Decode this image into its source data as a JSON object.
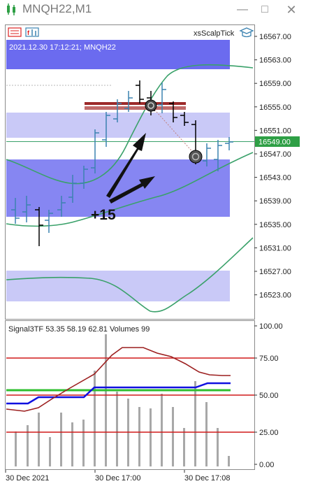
{
  "window": {
    "title": "MNQH22,M1",
    "icons": [
      "chart-app-icon",
      "minimize-icon",
      "maximize-icon",
      "close-icon"
    ]
  },
  "toolbar": {
    "indicator_name": "xsScalpTick",
    "icons": [
      "trade-panel-icon",
      "indicator-list-icon",
      "graduation-cap-icon"
    ]
  },
  "main_chart": {
    "info_label": "2021.12.30 17:12:21; MNQH22",
    "annotation": "+15",
    "price_axis": [
      "16567.00",
      "16563.00",
      "16559.00",
      "16555.00",
      "16551.00",
      "16547.00",
      "16543.00",
      "16539.00",
      "16535.00",
      "16531.00",
      "16527.00",
      "16523.00"
    ],
    "current_price": "16549.00",
    "current_price_color": "#2e9f45"
  },
  "sub_chart": {
    "label": "Signal3TF 53.35 58.19 62.81 Volumes 99",
    "axis": [
      "100.00",
      "75.00",
      "50.00",
      "25.00",
      "0.00"
    ]
  },
  "time_axis": [
    "30 Dec 2021",
    "30 Dec 17:00",
    "30 Dec 17:08"
  ],
  "colors": {
    "band_dark": "#6b6bef",
    "band_light": "#c9c9f7",
    "ma_line": "#3aa16a",
    "level_line": "#d11a1a",
    "signal_blue": "#1010e0",
    "signal_green": "#2fbf2f",
    "signal_red": "#9c1f1f"
  }
}
